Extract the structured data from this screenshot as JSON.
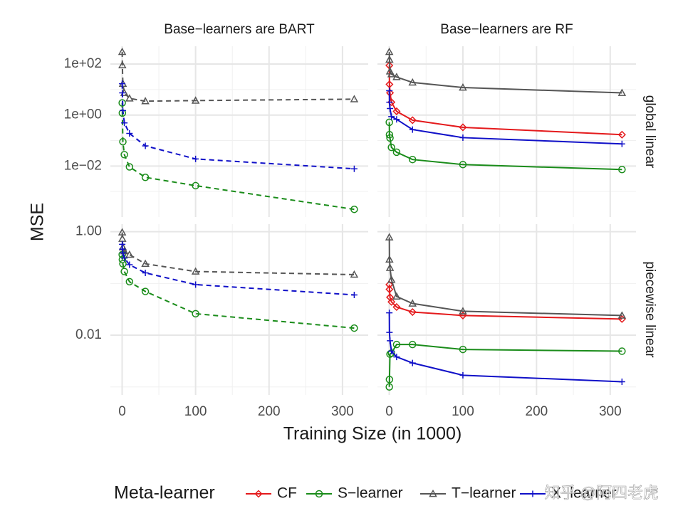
{
  "chart_data": {
    "type": "line",
    "log_y": true,
    "grid": true,
    "x_label": "Training Size (in 1000)",
    "y_label": "MSE",
    "legend_title": "Meta-learner",
    "legend_position": "bottom",
    "x": [
      0.1,
      0.3,
      1,
      3,
      10,
      31.6,
      100,
      316
    ],
    "xlim": [
      -16,
      335
    ],
    "xticks": [
      0,
      100,
      200,
      300
    ],
    "minor_xticks": [
      50,
      150,
      250
    ],
    "series": [
      {
        "name": "CF",
        "color": "#e41a1c",
        "marker": "diamond"
      },
      {
        "name": "S−learner",
        "color": "#1a8c1a",
        "marker": "circle"
      },
      {
        "name": "T−learner",
        "color": "#555555",
        "marker": "triangle"
      },
      {
        "name": "X−learner",
        "color": "#1010c8",
        "marker": "plus"
      }
    ],
    "columns": [
      {
        "title": "Base−learners are BART",
        "line_style": "dashed"
      },
      {
        "title": "Base−learners are RF",
        "line_style": "solid"
      }
    ],
    "rows": [
      {
        "label": "global linear",
        "ylim": [
          0.0001,
          500
        ],
        "yticks": [
          {
            "value": 0.01,
            "label": "1e−02"
          },
          {
            "value": 1,
            "label": "1e+00"
          },
          {
            "value": 100,
            "label": "1e+02"
          }
        ],
        "minor_yticks": [
          0.001,
          0.1,
          10
        ]
      },
      {
        "label": "piecewise linear",
        "ylim": [
          0.0007,
          1.4
        ],
        "yticks": [
          0.01,
          {
            "value": 1,
            "label": "1.00"
          }
        ],
        "minor_yticks": [
          0.001,
          0.1
        ]
      }
    ],
    "panels": [
      {
        "column": 0,
        "row": 0,
        "values": [
          [
            null,
            null,
            null,
            null,
            null,
            null,
            null,
            null
          ],
          [
            3.0,
            1.2,
            0.09,
            0.028,
            0.0093,
            0.0036,
            0.0017,
            0.0002
          ],
          [
            300,
            90,
            17,
            7.4,
            4.5,
            3.5,
            3.7,
            4.2
          ],
          [
            17,
            7.4,
            1.5,
            0.49,
            0.19,
            0.062,
            0.019,
            0.0078
          ]
        ]
      },
      {
        "column": 1,
        "row": 0,
        "values": [
          [
            88,
            16,
            7.4,
            3.2,
            1.4,
            0.63,
            0.33,
            0.17
          ],
          [
            0.52,
            0.17,
            0.126,
            0.054,
            0.035,
            0.018,
            0.0114,
            0.0073
          ],
          [
            300,
            150,
            52,
            40,
            31,
            19,
            12,
            7.4
          ],
          [
            9,
            3.2,
            1.8,
            0.87,
            0.68,
            0.27,
            0.13,
            0.074
          ]
        ]
      },
      {
        "column": 0,
        "row": 1,
        "values": [
          [
            null,
            null,
            null,
            null,
            null,
            null,
            null,
            null
          ],
          [
            0.36,
            0.29,
            0.24,
            0.17,
            0.108,
            0.07,
            0.026,
            0.0137
          ],
          [
            0.97,
            0.73,
            0.5,
            0.42,
            0.36,
            0.24,
            0.17,
            0.148
          ],
          [
            0.57,
            0.46,
            0.39,
            0.31,
            0.23,
            0.16,
            0.095,
            0.06
          ]
        ]
      },
      {
        "column": 1,
        "row": 1,
        "values": [
          [
            0.095,
            0.077,
            0.054,
            0.044,
            0.035,
            0.028,
            0.024,
            0.0205
          ],
          [
            0.001,
            0.00139,
            0.0043,
            0.0045,
            0.0066,
            0.0066,
            0.0053,
            0.0049
          ],
          [
            0.78,
            0.29,
            0.2,
            0.118,
            0.056,
            0.041,
            0.029,
            0.024
          ],
          [
            0.027,
            0.0113,
            0.0078,
            0.0049,
            0.0038,
            0.0029,
            0.00168,
            0.00126
          ]
        ]
      }
    ]
  },
  "watermark": "知乎 @阿四老虎"
}
